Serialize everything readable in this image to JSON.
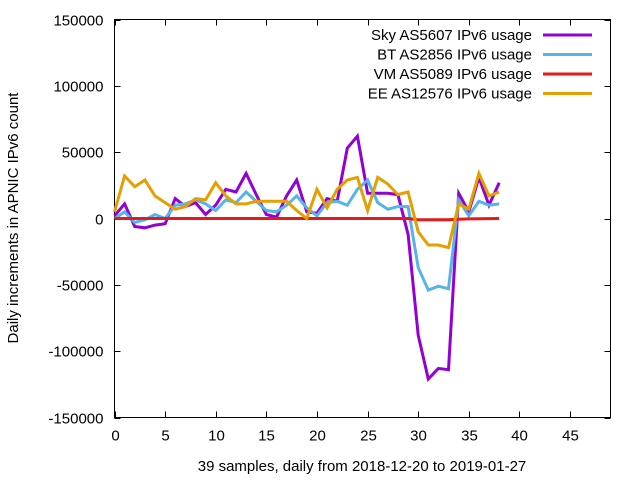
{
  "chart_data": {
    "type": "line",
    "title": "",
    "xlabel": "39 samples, daily from 2018-12-20 to 2019-01-27",
    "ylabel": "Daily increments in APNIC IPv6 count",
    "xlim": [
      0,
      49
    ],
    "ylim": [
      -150000,
      150000
    ],
    "xticks": [
      0,
      5,
      10,
      15,
      20,
      25,
      30,
      35,
      40,
      45
    ],
    "yticks": [
      -150000,
      -100000,
      -50000,
      0,
      50000,
      100000,
      150000
    ],
    "xtick_labels": [
      "0",
      "5",
      "10",
      "15",
      "20",
      "25",
      "30",
      "35",
      "40",
      "45"
    ],
    "ytick_labels": [
      "-150000",
      "-100000",
      "-50000",
      "0",
      "50000",
      "100000",
      "150000"
    ],
    "grid": false,
    "legend_position": "top-right",
    "x": [
      0,
      1,
      2,
      3,
      4,
      5,
      6,
      7,
      8,
      9,
      10,
      11,
      12,
      13,
      14,
      15,
      16,
      17,
      18,
      19,
      20,
      21,
      22,
      23,
      24,
      25,
      26,
      27,
      28,
      29,
      30,
      31,
      32,
      33,
      34,
      35,
      36,
      37,
      38
    ],
    "series": [
      {
        "name": "Sky AS5607 IPv6 usage",
        "color": "#9400d3",
        "values": [
          2000,
          11000,
          -6000,
          -7000,
          -5000,
          -4000,
          15000,
          9000,
          12000,
          3000,
          10000,
          22000,
          20000,
          34000,
          18000,
          3000,
          1000,
          17000,
          29000,
          5000,
          4000,
          15000,
          13000,
          53000,
          62000,
          19000,
          19000,
          19000,
          18000,
          -12000,
          -88000,
          -121000,
          -113000,
          -114000,
          19000,
          5000,
          31000,
          10000,
          27000
        ]
      },
      {
        "name": "BT AS2856 IPv6 usage",
        "color": "#56b4e9",
        "values": [
          0,
          5000,
          -3000,
          -1000,
          3000,
          0,
          10000,
          11000,
          14000,
          11000,
          6000,
          14000,
          12000,
          20000,
          13000,
          6000,
          5000,
          10000,
          17000,
          8000,
          2000,
          12000,
          13000,
          10000,
          22000,
          29000,
          12000,
          7000,
          9000,
          9000,
          -37000,
          -54000,
          -51000,
          -53000,
          14000,
          2000,
          13000,
          10000,
          11000
        ]
      },
      {
        "name": "VM AS5089 IPv6 usage",
        "color": "#e41a1c",
        "values": [
          0,
          0,
          0,
          0,
          0,
          0,
          0,
          0,
          0,
          0,
          0,
          0,
          0,
          0,
          0,
          0,
          0,
          0,
          0,
          0,
          0,
          0,
          0,
          0,
          0,
          0,
          0,
          0,
          0,
          0,
          -1000,
          -1000,
          -1000,
          -1000,
          -500,
          -300,
          -200,
          -100,
          0
        ]
      },
      {
        "name": "EE AS12576 IPv6 usage",
        "color": "#e69f00",
        "values": [
          5000,
          32000,
          24000,
          29000,
          17000,
          12000,
          7000,
          9000,
          15000,
          14000,
          27000,
          17000,
          11000,
          11000,
          13000,
          13000,
          13000,
          13000,
          6000,
          0,
          22000,
          8000,
          22000,
          29000,
          31000,
          6000,
          31000,
          26000,
          18000,
          20000,
          -10000,
          -20000,
          -20000,
          -22000,
          11000,
          7000,
          34000,
          17000,
          20000
        ]
      }
    ]
  }
}
